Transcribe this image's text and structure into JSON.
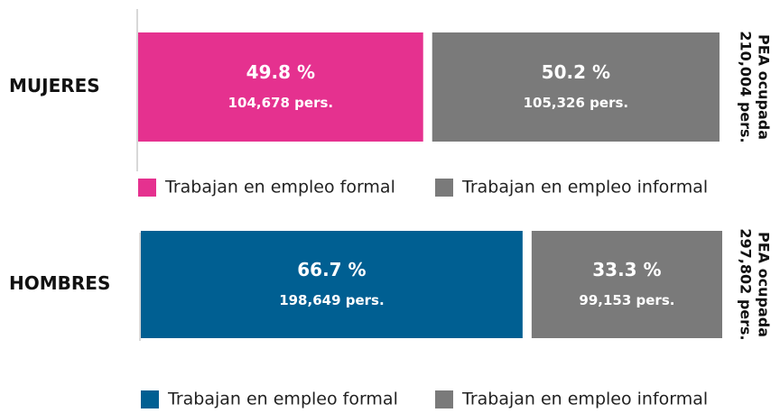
{
  "chart_data": [
    {
      "type": "bar",
      "categories": [
        "MUJERES"
      ],
      "xlim": [
        0,
        100
      ],
      "series": [
        {
          "name": "Trabajan en empleo formal",
          "color": "#e5318f",
          "values": [
            49.8
          ],
          "value_labels": [
            "49.8 %"
          ],
          "persons": [
            104678
          ],
          "persons_labels": [
            "104,678 pers."
          ]
        },
        {
          "name": "Trabajan en empleo informal",
          "color": "#7a7a7a",
          "values": [
            50.2
          ],
          "value_labels": [
            "50.2 %"
          ],
          "persons": [
            105326
          ],
          "persons_labels": [
            "105,326 pers."
          ]
        }
      ],
      "total_title": "PEA ocupada",
      "total": 210004,
      "total_label": "210,004 pers."
    },
    {
      "type": "bar",
      "categories": [
        "HOMBRES"
      ],
      "xlim": [
        0,
        100
      ],
      "series": [
        {
          "name": "Trabajan en empleo formal",
          "color": "#005f92",
          "values": [
            66.7
          ],
          "value_labels": [
            "66.7 %"
          ],
          "persons": [
            198649
          ],
          "persons_labels": [
            "198,649 pers."
          ]
        },
        {
          "name": "Trabajan en empleo informal",
          "color": "#7a7a7a",
          "values": [
            33.3
          ],
          "value_labels": [
            "33.3 %"
          ],
          "persons": [
            99153
          ],
          "persons_labels": [
            "99,153 pers."
          ]
        }
      ],
      "total_title": "PEA ocupada",
      "total": 297802,
      "total_label": "297,802 pers."
    }
  ]
}
